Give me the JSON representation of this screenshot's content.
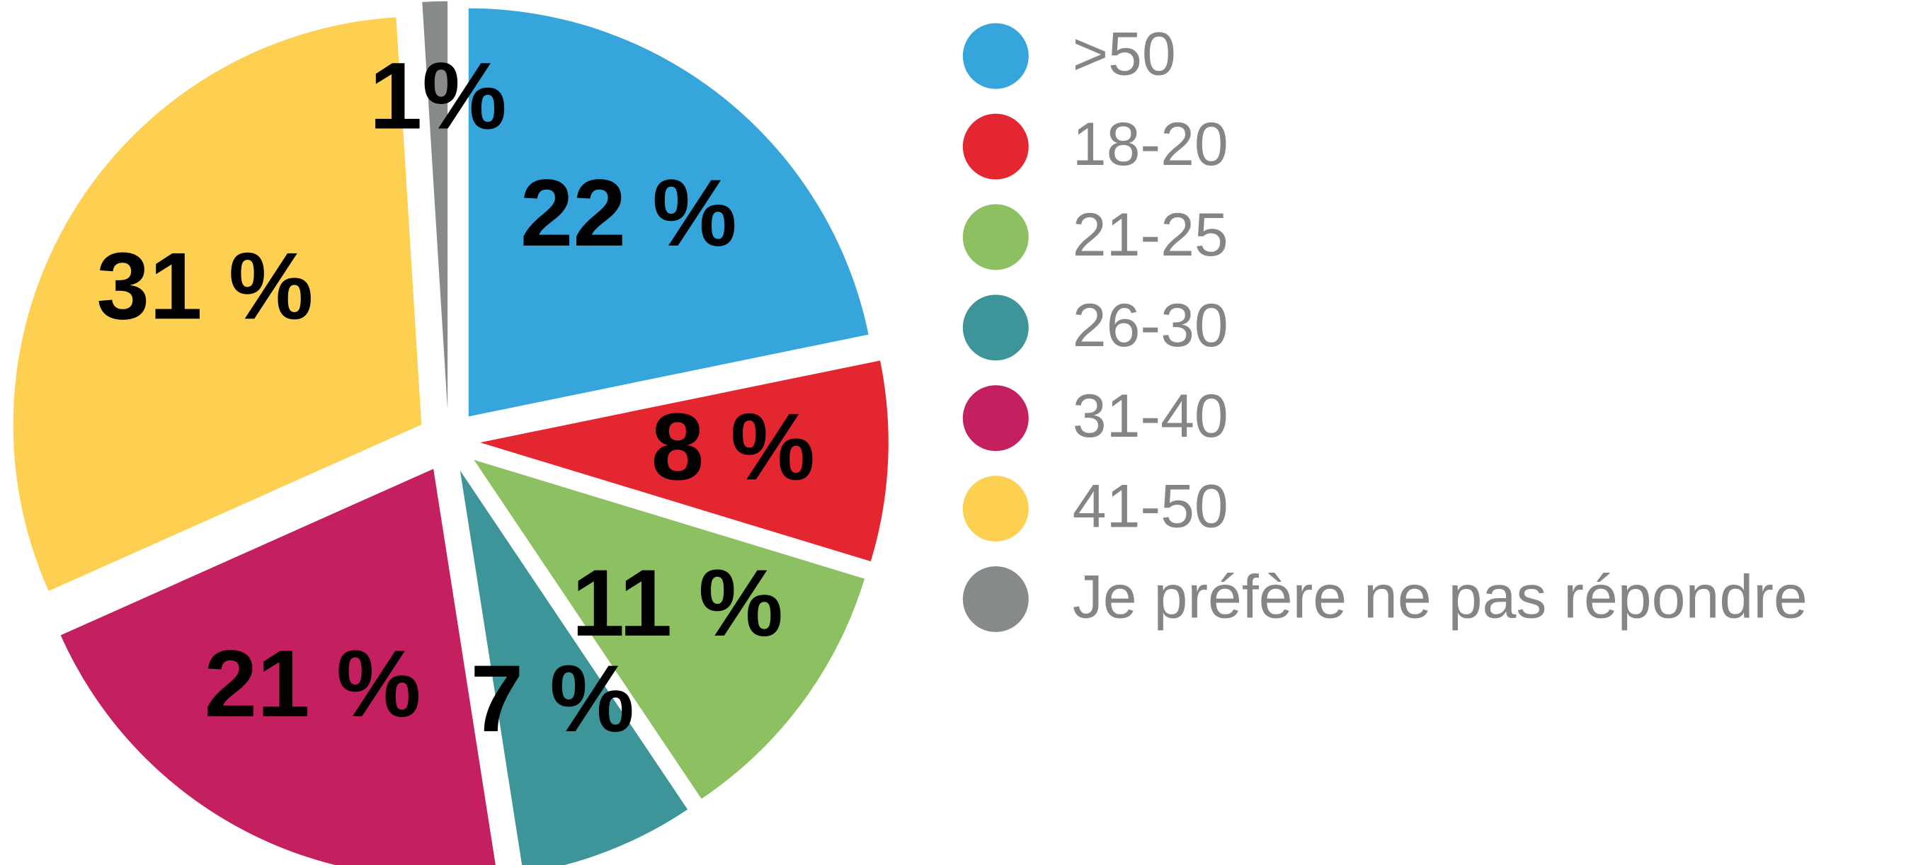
{
  "chart_data": {
    "type": "pie",
    "categories": [
      ">50",
      "18-20",
      "21-25",
      "26-30",
      "31-40",
      "41-50",
      "Je préfère ne pas répondre"
    ],
    "values": [
      22,
      8,
      11,
      7,
      21,
      31,
      1
    ],
    "value_labels": [
      "22 %",
      "8 %",
      "11 %",
      "7 %",
      "21 %",
      "31 %",
      "1%"
    ],
    "colors": [
      "#36a5dc",
      "#e3262f",
      "#8dc061",
      "#3e9599",
      "#c41f5f",
      "#fdd052",
      "#878a8b"
    ],
    "legend": "right"
  }
}
